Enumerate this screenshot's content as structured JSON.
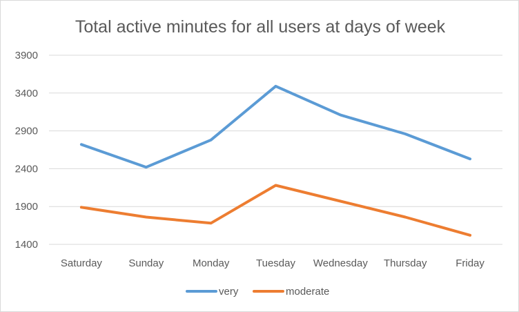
{
  "chart_data": {
    "type": "line",
    "title": "Total active minutes for all users at days of week",
    "xlabel": "",
    "ylabel": "",
    "categories": [
      "Saturday",
      "Sunday",
      "Monday",
      "Tuesday",
      "Wednesday",
      "Thursday",
      "Friday"
    ],
    "ylim": [
      1400,
      3900
    ],
    "yticks": [
      "3900",
      "3400",
      "2900",
      "2400",
      "1900",
      "1400"
    ],
    "grid": true,
    "legend_position": "bottom",
    "series": [
      {
        "name": "very",
        "color": "#5b9bd5",
        "values": [
          2720,
          2420,
          2780,
          3490,
          3110,
          2860,
          2530
        ]
      },
      {
        "name": "moderate",
        "color": "#ed7d31",
        "values": [
          1890,
          1760,
          1680,
          2180,
          1970,
          1760,
          1520
        ]
      }
    ]
  }
}
